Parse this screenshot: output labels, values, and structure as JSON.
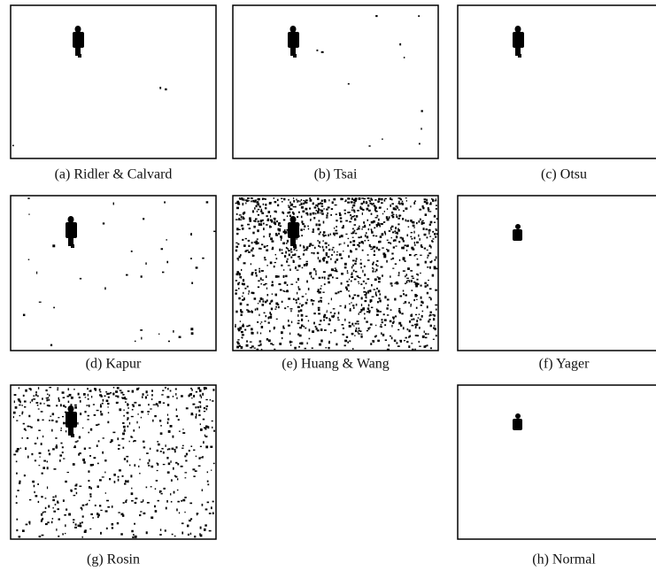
{
  "panels": [
    {
      "caption": "(a) Ridler & Calvard"
    },
    {
      "caption": "(b) Tsai"
    },
    {
      "caption": "(c) Otsu"
    },
    {
      "caption": "(d) Kapur"
    },
    {
      "caption": "(e) Huang & Wang"
    },
    {
      "caption": "(f) Yager"
    },
    {
      "caption": "(g) Rosin"
    },
    {
      "caption": "(h) Normal"
    }
  ]
}
